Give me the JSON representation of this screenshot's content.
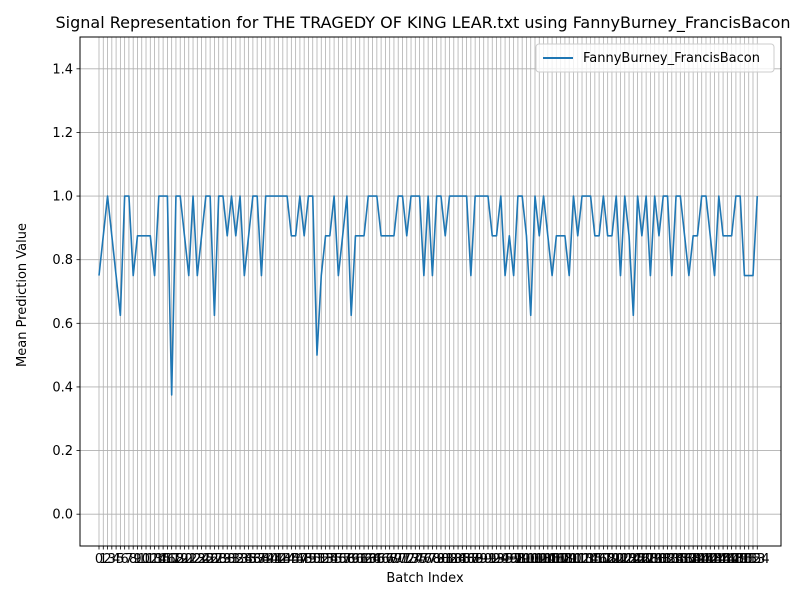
{
  "chart_data": {
    "type": "line",
    "title": "Signal Representation for THE TRAGEDY OF KING LEAR.txt using FannyBurney_FrancisBacon",
    "xlabel": "Batch Index",
    "ylabel": "Mean Prediction Value",
    "xlim": [
      0,
      153
    ],
    "ylim": [
      -0.1,
      1.5
    ],
    "yticks": [
      0.0,
      0.2,
      0.4,
      0.6,
      0.8,
      1.0,
      1.2,
      1.4
    ],
    "ytick_labels": [
      "0.0",
      "0.2",
      "0.4",
      "0.6",
      "0.8",
      "1.0",
      "1.2",
      "1.4"
    ],
    "grid": true,
    "legend_position": "top-right",
    "color": "#1f77b4",
    "series": [
      {
        "name": "FannyBurney_FrancisBacon",
        "values": [
          0.75,
          0.875,
          1.0,
          0.875,
          0.75,
          0.625,
          1.0,
          1.0,
          0.75,
          0.875,
          0.875,
          0.875,
          0.875,
          0.75,
          1.0,
          1.0,
          1.0,
          0.375,
          1.0,
          1.0,
          0.875,
          0.75,
          1.0,
          0.75,
          0.875,
          1.0,
          1.0,
          0.625,
          1.0,
          1.0,
          0.875,
          1.0,
          0.875,
          1.0,
          0.75,
          0.875,
          1.0,
          1.0,
          0.75,
          1.0,
          1.0,
          1.0,
          1.0,
          1.0,
          1.0,
          0.875,
          0.875,
          1.0,
          0.875,
          1.0,
          1.0,
          0.5,
          0.75,
          0.875,
          0.875,
          1.0,
          0.75,
          0.875,
          1.0,
          0.625,
          0.875,
          0.875,
          0.875,
          1.0,
          1.0,
          1.0,
          0.875,
          0.875,
          0.875,
          0.875,
          1.0,
          1.0,
          0.875,
          1.0,
          1.0,
          1.0,
          0.75,
          1.0,
          0.75,
          1.0,
          1.0,
          0.875,
          1.0,
          1.0,
          1.0,
          1.0,
          1.0,
          0.75,
          1.0,
          1.0,
          1.0,
          1.0,
          0.875,
          0.875,
          1.0,
          0.75,
          0.875,
          0.75,
          1.0,
          1.0,
          0.875,
          0.625,
          1.0,
          0.875,
          1.0,
          0.875,
          0.75,
          0.875,
          0.875,
          0.875,
          0.75,
          1.0,
          0.875,
          1.0,
          1.0,
          1.0,
          0.875,
          0.875,
          1.0,
          0.875,
          0.875,
          1.0,
          0.75,
          1.0,
          0.875,
          0.625,
          1.0,
          0.875,
          1.0,
          0.75,
          1.0,
          0.875,
          1.0,
          1.0,
          0.75,
          1.0,
          1.0,
          0.875,
          0.75,
          0.875,
          0.875,
          1.0,
          1.0,
          0.875,
          0.75,
          1.0,
          0.875,
          0.875,
          0.875,
          1.0,
          1.0,
          0.75,
          0.75,
          0.75,
          1.0
        ]
      }
    ]
  }
}
